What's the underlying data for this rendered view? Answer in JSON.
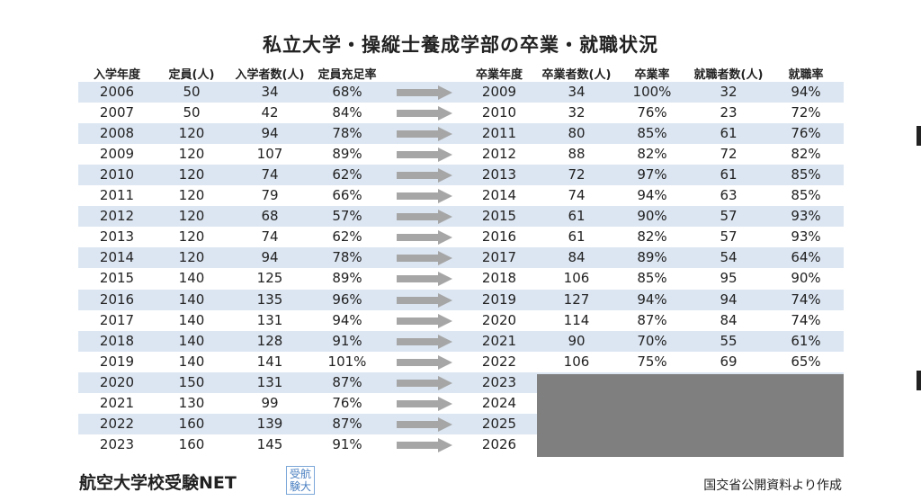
{
  "title": "私立大学・操縦士養成学部の卒業・就職状況",
  "headers": {
    "entry_year": "入学年度",
    "capacity": "定員(人)",
    "entrants": "入学者数(人)",
    "fill_rate": "定員充足率",
    "grad_year": "卒業年度",
    "graduates": "卒業者数(人)",
    "grad_rate": "卒業率",
    "employed": "就職者数(人)",
    "employment_rate": "就職率"
  },
  "rows": [
    {
      "entry_year": "2006",
      "capacity": "50",
      "entrants": "34",
      "fill_rate": "68%",
      "grad_year": "2009",
      "graduates": "34",
      "grad_rate": "100%",
      "employed": "32",
      "employment_rate": "94%"
    },
    {
      "entry_year": "2007",
      "capacity": "50",
      "entrants": "42",
      "fill_rate": "84%",
      "grad_year": "2010",
      "graduates": "32",
      "grad_rate": "76%",
      "employed": "23",
      "employment_rate": "72%"
    },
    {
      "entry_year": "2008",
      "capacity": "120",
      "entrants": "94",
      "fill_rate": "78%",
      "grad_year": "2011",
      "graduates": "80",
      "grad_rate": "85%",
      "employed": "61",
      "employment_rate": "76%"
    },
    {
      "entry_year": "2009",
      "capacity": "120",
      "entrants": "107",
      "fill_rate": "89%",
      "grad_year": "2012",
      "graduates": "88",
      "grad_rate": "82%",
      "employed": "72",
      "employment_rate": "82%"
    },
    {
      "entry_year": "2010",
      "capacity": "120",
      "entrants": "74",
      "fill_rate": "62%",
      "grad_year": "2013",
      "graduates": "72",
      "grad_rate": "97%",
      "employed": "61",
      "employment_rate": "85%"
    },
    {
      "entry_year": "2011",
      "capacity": "120",
      "entrants": "79",
      "fill_rate": "66%",
      "grad_year": "2014",
      "graduates": "74",
      "grad_rate": "94%",
      "employed": "63",
      "employment_rate": "85%"
    },
    {
      "entry_year": "2012",
      "capacity": "120",
      "entrants": "68",
      "fill_rate": "57%",
      "grad_year": "2015",
      "graduates": "61",
      "grad_rate": "90%",
      "employed": "57",
      "employment_rate": "93%"
    },
    {
      "entry_year": "2013",
      "capacity": "120",
      "entrants": "74",
      "fill_rate": "62%",
      "grad_year": "2016",
      "graduates": "61",
      "grad_rate": "82%",
      "employed": "57",
      "employment_rate": "93%"
    },
    {
      "entry_year": "2014",
      "capacity": "120",
      "entrants": "94",
      "fill_rate": "78%",
      "grad_year": "2017",
      "graduates": "84",
      "grad_rate": "89%",
      "employed": "54",
      "employment_rate": "64%"
    },
    {
      "entry_year": "2015",
      "capacity": "140",
      "entrants": "125",
      "fill_rate": "89%",
      "grad_year": "2018",
      "graduates": "106",
      "grad_rate": "85%",
      "employed": "95",
      "employment_rate": "90%"
    },
    {
      "entry_year": "2016",
      "capacity": "140",
      "entrants": "135",
      "fill_rate": "96%",
      "grad_year": "2019",
      "graduates": "127",
      "grad_rate": "94%",
      "employed": "94",
      "employment_rate": "74%"
    },
    {
      "entry_year": "2017",
      "capacity": "140",
      "entrants": "131",
      "fill_rate": "94%",
      "grad_year": "2020",
      "graduates": "114",
      "grad_rate": "87%",
      "employed": "84",
      "employment_rate": "74%"
    },
    {
      "entry_year": "2018",
      "capacity": "140",
      "entrants": "128",
      "fill_rate": "91%",
      "grad_year": "2021",
      "graduates": "90",
      "grad_rate": "70%",
      "employed": "55",
      "employment_rate": "61%"
    },
    {
      "entry_year": "2019",
      "capacity": "140",
      "entrants": "141",
      "fill_rate": "101%",
      "grad_year": "2022",
      "graduates": "106",
      "grad_rate": "75%",
      "employed": "69",
      "employment_rate": "65%"
    },
    {
      "entry_year": "2020",
      "capacity": "150",
      "entrants": "131",
      "fill_rate": "87%",
      "grad_year": "2023",
      "graduates": "",
      "grad_rate": "",
      "employed": "",
      "employment_rate": ""
    },
    {
      "entry_year": "2021",
      "capacity": "130",
      "entrants": "99",
      "fill_rate": "76%",
      "grad_year": "2024",
      "graduates": "",
      "grad_rate": "",
      "employed": "",
      "employment_rate": ""
    },
    {
      "entry_year": "2022",
      "capacity": "160",
      "entrants": "139",
      "fill_rate": "87%",
      "grad_year": "2025",
      "graduates": "",
      "grad_rate": "",
      "employed": "",
      "employment_rate": ""
    },
    {
      "entry_year": "2023",
      "capacity": "160",
      "entrants": "145",
      "fill_rate": "91%",
      "grad_year": "2026",
      "graduates": "",
      "grad_rate": "",
      "employed": "",
      "employment_rate": ""
    }
  ],
  "footer": {
    "brand": "航空大学校受験NET",
    "logo_text": "受航験大",
    "source": "国交省公開資料より作成"
  },
  "colors": {
    "stripe": "#dce6f2",
    "arrow": "#a6a6a6",
    "redacted_block": "#7f7f7f"
  }
}
